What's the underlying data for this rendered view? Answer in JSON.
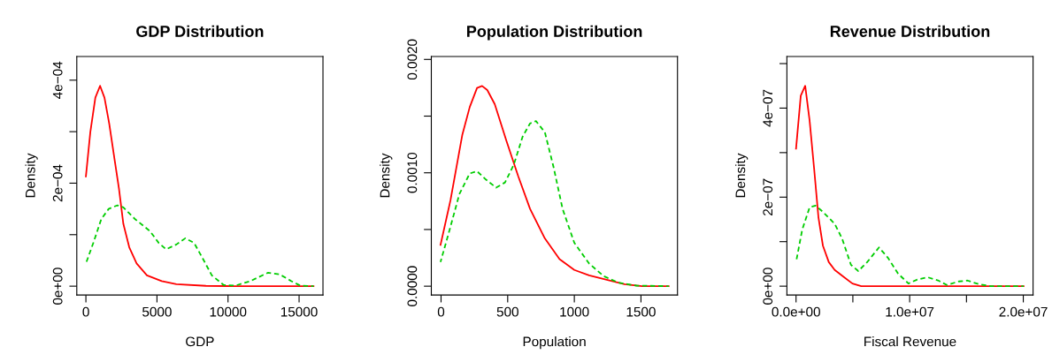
{
  "chart_data": [
    {
      "type": "line",
      "title": "GDP Distribution",
      "xlabel": "GDP",
      "ylabel": "Density",
      "xlim": [
        -641,
        16680
      ],
      "ylim": [
        -1.72e-05,
        0.000446
      ],
      "xticks": [
        0,
        5000,
        10000,
        15000
      ],
      "yticks": [
        {
          "value": 0,
          "label": "0e+00"
        },
        {
          "value": 0.0001,
          "label": null
        },
        {
          "value": 0.0002,
          "label": "2e−04"
        },
        {
          "value": 0.0003,
          "label": null
        },
        {
          "value": 0.0004,
          "label": "4e−04"
        }
      ],
      "grid": false,
      "legend": false,
      "series": [
        {
          "color": "#ff0000",
          "line_style": "solid",
          "x": [
            0,
            311,
            664,
            996,
            1307,
            1639,
            2012,
            2324,
            2635,
            3050,
            3568,
            4295,
            5332,
            6369,
            8444,
            10519,
            16017
          ],
          "values": [
            0.000213,
            0.000299,
            0.000366,
            0.000389,
            0.000366,
            0.000316,
            0.000247,
            0.00019,
            0.000121,
            7.55e-05,
            4.4e-05,
            2.1e-05,
            9.7e-06,
            4e-06,
            6e-07,
            0,
            0
          ]
        },
        {
          "color": "#00cd00",
          "line_style": "dashed",
          "x": [
            0,
            560,
            1079,
            1598,
            2220,
            2635,
            3465,
            4502,
            5124,
            5643,
            6369,
            6992,
            7614,
            8237,
            8859,
            9689,
            10519,
            11556,
            12801,
            13631,
            14461,
            15083,
            16017
          ],
          "values": [
            4.4e-05,
            8.7e-05,
            0.00013,
            0.00015,
            0.000157,
            0.000153,
            0.00013,
            0.000107,
            8.4e-05,
            7.15e-05,
            8.1e-05,
            9.3e-05,
            8.4e-05,
            5.3e-05,
            2.1e-05,
            2.3e-06,
            1.1e-06,
            9.7e-06,
            2.6e-05,
            2.3e-05,
            9.7e-06,
            1.1e-06,
            0
          ]
        }
      ]
    },
    {
      "type": "line",
      "title": "Population Distribution",
      "xlabel": "Population",
      "ylabel": "Density",
      "xlim": [
        -73,
        1774
      ],
      "ylim": [
        -7.8e-05,
        0.002026
      ],
      "xticks": [
        0,
        500,
        1000,
        1500
      ],
      "yticks": [
        {
          "value": 0,
          "label": "0.0000"
        },
        {
          "value": 0.0005,
          "label": null
        },
        {
          "value": 0.001,
          "label": "0.0010"
        },
        {
          "value": 0.0015,
          "label": null
        },
        {
          "value": 0.002,
          "label": "0.0020"
        }
      ],
      "grid": false,
      "legend": false,
      "series": [
        {
          "color": "#ff0000",
          "line_style": "solid",
          "x": [
            -4,
            71,
            159,
            215,
            270,
            308,
            347,
            403,
            491,
            580,
            668,
            779,
            889,
            1000,
            1111,
            1243,
            1376,
            1509,
            1708
          ],
          "values": [
            0.000364,
            0.000759,
            0.001332,
            0.001579,
            0.001748,
            0.001766,
            0.00173,
            0.001605,
            0.00128,
            0.000967,
            0.000681,
            0.000421,
            0.000239,
            0.000143,
            9.6e-05,
            5.7e-05,
            1.8e-05,
            0,
            0
          ]
        },
        {
          "color": "#00cd00",
          "line_style": "dashed",
          "x": [
            -4,
            71,
            137,
            215,
            270,
            336,
            413,
            480,
            546,
            612,
            668,
            712,
            779,
            845,
            912,
            1000,
            1111,
            1221,
            1332,
            1465,
            1708
          ],
          "values": [
            0.000213,
            0.000525,
            0.000811,
            0.000994,
            0.001014,
            0.000941,
            0.000869,
            0.000915,
            0.001072,
            0.001319,
            0.001436,
            0.001456,
            0.001358,
            0.001046,
            0.000681,
            0.000382,
            0.0002,
            8.8e-05,
            3.1e-05,
            5e-06,
            0
          ]
        }
      ]
    },
    {
      "type": "line",
      "title": "Revenue Distribution",
      "xlabel": "Fiscal Revenue",
      "ylabel": "Density",
      "xlim": [
        -805000,
        20860000
      ],
      "ylim": [
        -1.99e-08,
        5.16e-07
      ],
      "xticks": [
        {
          "value": 0,
          "label": "0.0e+00"
        },
        {
          "value": 5000000,
          "label": null
        },
        {
          "value": 10000000,
          "label": "1.0e+07"
        },
        {
          "value": 15000000,
          "label": null
        },
        {
          "value": 20000000,
          "label": "2.0e+07"
        }
      ],
      "yticks": [
        {
          "value": 0,
          "label": "0e+00"
        },
        {
          "value": 1e-07,
          "label": null
        },
        {
          "value": 2e-07,
          "label": "2e−07"
        },
        {
          "value": 3e-07,
          "label": null
        },
        {
          "value": 4e-07,
          "label": "4e−07"
        },
        {
          "value": 5e-07,
          "label": null
        }
      ],
      "grid": false,
      "legend": false,
      "series": [
        {
          "color": "#ff0000",
          "line_style": "solid",
          "x": [
            0,
            416000,
            805000,
            1195000,
            1584000,
            1974000,
            2364000,
            2883000,
            3403000,
            4182000,
            4961000,
            5740000,
            20030000
          ],
          "values": [
            3.09e-07,
            4.28e-07,
            4.5e-07,
            3.72e-07,
            2.66e-07,
            1.54e-07,
            9.1e-08,
            5.4e-08,
            3.64e-08,
            2.12e-08,
            6e-09,
            0,
            0
          ]
        },
        {
          "color": "#00cd00",
          "line_style": "dashed",
          "x": [
            0,
            545000,
            1195000,
            1714000,
            2364000,
            3403000,
            4052000,
            4831000,
            5481000,
            6260000,
            7299000,
            8078000,
            8987000,
            9896000,
            10675000,
            11584000,
            12494000,
            13273000,
            14312000,
            15091000,
            16130000,
            17169000,
            20030000
          ],
          "values": [
            5.4e-08,
            1.27e-07,
            1.77e-07,
            1.81e-07,
            1.67e-07,
            1.4e-07,
            1.07e-07,
            4.8e-08,
            3.4e-08,
            5.4e-08,
            8.7e-08,
            6.4e-08,
            2.8e-08,
            6e-09,
            1.5e-08,
            2e-08,
            1.3e-08,
            2.6e-09,
            1.06e-08,
            1.26e-08,
            4e-09,
            0,
            0
          ]
        }
      ]
    }
  ]
}
